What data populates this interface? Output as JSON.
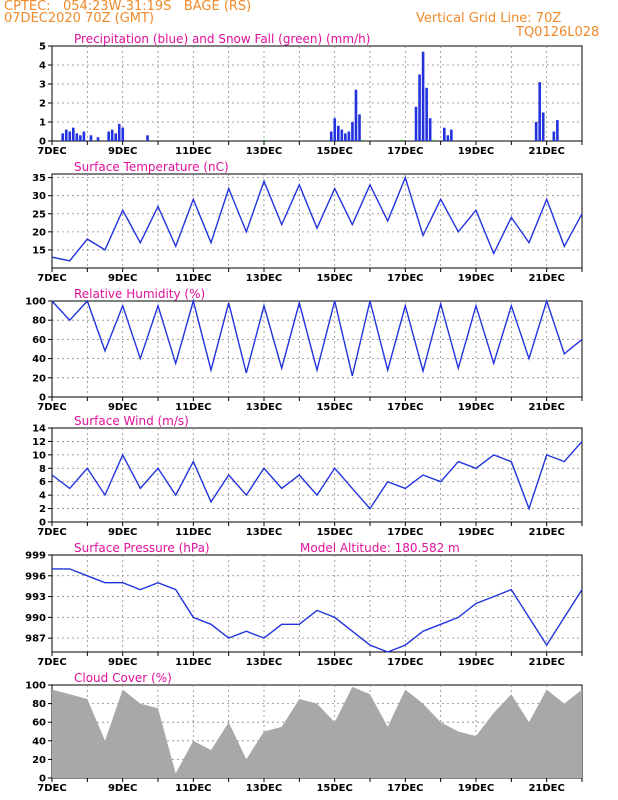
{
  "header": {
    "source_label": "CPTEC:",
    "coords": "054:23W-31:19S",
    "station": "BAGE (RS)",
    "run_date": "07DEC2020 70Z (GMT)",
    "grid_note": "Vertical Grid Line: 70Z",
    "model_code": "TQ0126L028"
  },
  "colors": {
    "accent": "#f08a2a",
    "title": "#e0119a",
    "line": "#2233dd",
    "snow": "#18a018",
    "cloud": "#a8a8a8"
  },
  "x_ticks": [
    "7DEC",
    "9DEC",
    "11DEC",
    "13DEC",
    "15DEC",
    "17DEC",
    "19DEC",
    "21DEC"
  ],
  "chart_data": [
    {
      "type": "bar",
      "title": "Precipitation (blue) and Snow Fall (green) (mm/h)",
      "ylim": [
        0,
        5
      ],
      "yticks": [
        "0",
        "1",
        "2",
        "3",
        "4",
        "5"
      ],
      "xlim_days": [
        7,
        22
      ],
      "series": [
        {
          "name": "Precipitation",
          "color": "#2233dd",
          "points": [
            [
              7.3,
              0.4
            ],
            [
              7.4,
              0.6
            ],
            [
              7.5,
              0.5
            ],
            [
              7.6,
              0.7
            ],
            [
              7.7,
              0.4
            ],
            [
              7.8,
              0.3
            ],
            [
              7.9,
              0.5
            ],
            [
              8.1,
              0.3
            ],
            [
              8.3,
              0.2
            ],
            [
              8.6,
              0.5
            ],
            [
              8.7,
              0.6
            ],
            [
              8.8,
              0.4
            ],
            [
              8.9,
              0.9
            ],
            [
              9.0,
              0.7
            ],
            [
              9.7,
              0.3
            ],
            [
              14.9,
              0.5
            ],
            [
              15.0,
              1.2
            ],
            [
              15.1,
              0.8
            ],
            [
              15.2,
              0.6
            ],
            [
              15.3,
              0.4
            ],
            [
              15.4,
              0.5
            ],
            [
              15.5,
              1.0
            ],
            [
              15.6,
              2.7
            ],
            [
              15.7,
              1.4
            ],
            [
              17.3,
              1.8
            ],
            [
              17.4,
              3.5
            ],
            [
              17.5,
              4.7
            ],
            [
              17.6,
              2.8
            ],
            [
              17.7,
              1.2
            ],
            [
              18.1,
              0.7
            ],
            [
              18.2,
              0.3
            ],
            [
              18.3,
              0.6
            ],
            [
              20.7,
              1.0
            ],
            [
              20.8,
              3.1
            ],
            [
              20.9,
              1.5
            ],
            [
              21.2,
              0.5
            ],
            [
              21.3,
              1.1
            ]
          ]
        },
        {
          "name": "Snow Fall",
          "color": "#18a018",
          "points": [
            [
              13.0,
              0.05
            ],
            [
              15.8,
              0.05
            ],
            [
              16.9,
              0.05
            ],
            [
              17.8,
              0.05
            ]
          ]
        }
      ]
    },
    {
      "type": "line",
      "title": "Surface Temperature (nC)",
      "ylim": [
        10,
        36
      ],
      "yticks": [
        "15",
        "20",
        "25",
        "30",
        "35"
      ],
      "xlim_days": [
        7,
        22
      ],
      "x": [
        7.0,
        7.5,
        8.0,
        8.5,
        9.0,
        9.5,
        10.0,
        10.5,
        11.0,
        11.5,
        12.0,
        12.5,
        13.0,
        13.5,
        14.0,
        14.5,
        15.0,
        15.5,
        16.0,
        16.5,
        17.0,
        17.5,
        18.0,
        18.5,
        19.0,
        19.5,
        20.0,
        20.5,
        21.0,
        21.5,
        22.0
      ],
      "values": [
        13,
        12,
        18,
        15,
        26,
        17,
        27,
        16,
        29,
        17,
        32,
        20,
        34,
        22,
        33,
        21,
        32,
        22,
        33,
        23,
        35,
        19,
        29,
        20,
        26,
        14,
        24,
        17,
        29,
        16,
        25
      ]
    },
    {
      "type": "line",
      "title": "Relative Humidity (%)",
      "ylim": [
        0,
        100
      ],
      "yticks": [
        "0",
        "20",
        "40",
        "60",
        "80",
        "100"
      ],
      "xlim_days": [
        7,
        22
      ],
      "x": [
        7.0,
        7.5,
        8.0,
        8.5,
        9.0,
        9.5,
        10.0,
        10.5,
        11.0,
        11.5,
        12.0,
        12.5,
        13.0,
        13.5,
        14.0,
        14.5,
        15.0,
        15.5,
        16.0,
        16.5,
        17.0,
        17.5,
        18.0,
        18.5,
        19.0,
        19.5,
        20.0,
        20.5,
        21.0,
        21.5,
        22.0
      ],
      "values": [
        100,
        80,
        100,
        48,
        95,
        40,
        95,
        35,
        100,
        28,
        98,
        25,
        95,
        30,
        98,
        28,
        100,
        22,
        100,
        28,
        95,
        27,
        97,
        30,
        95,
        35,
        95,
        40,
        100,
        45,
        60
      ]
    },
    {
      "type": "line",
      "title": "Surface Wind (m/s)",
      "ylim": [
        0,
        14
      ],
      "yticks": [
        "0",
        "2",
        "4",
        "6",
        "8",
        "10",
        "12",
        "14"
      ],
      "xlim_days": [
        7,
        22
      ],
      "x": [
        7.0,
        7.5,
        8.0,
        8.5,
        9.0,
        9.5,
        10.0,
        10.5,
        11.0,
        11.5,
        12.0,
        12.5,
        13.0,
        13.5,
        14.0,
        14.5,
        15.0,
        15.5,
        16.0,
        16.5,
        17.0,
        17.5,
        18.0,
        18.5,
        19.0,
        19.5,
        20.0,
        20.5,
        21.0,
        21.5,
        22.0
      ],
      "values": [
        7,
        5,
        8,
        4,
        10,
        5,
        8,
        4,
        9,
        3,
        7,
        4,
        8,
        5,
        7,
        4,
        8,
        5,
        2,
        6,
        5,
        7,
        6,
        9,
        8,
        10,
        9,
        2,
        10,
        9,
        12
      ]
    },
    {
      "type": "line",
      "title": "Surface Pressure (hPa)",
      "subtitle": "Model Altitude: 180.582 m",
      "ylim": [
        985,
        999
      ],
      "yticks": [
        "987",
        "990",
        "993",
        "996",
        "999"
      ],
      "xlim_days": [
        7,
        22
      ],
      "x": [
        7.0,
        7.5,
        8.0,
        8.5,
        9.0,
        9.5,
        10.0,
        10.5,
        11.0,
        11.5,
        12.0,
        12.5,
        13.0,
        13.5,
        14.0,
        14.5,
        15.0,
        15.5,
        16.0,
        16.5,
        17.0,
        17.5,
        18.0,
        18.5,
        19.0,
        19.5,
        20.0,
        20.5,
        21.0,
        21.5,
        22.0
      ],
      "values": [
        997,
        997,
        996,
        995,
        995,
        994,
        995,
        994,
        990,
        989,
        987,
        988,
        987,
        989,
        989,
        991,
        990,
        988,
        986,
        985,
        986,
        988,
        989,
        990,
        992,
        993,
        994,
        990,
        986,
        990,
        994
      ]
    },
    {
      "type": "area",
      "title": "Cloud Cover (%)",
      "ylim": [
        0,
        100
      ],
      "yticks": [
        "0",
        "20",
        "40",
        "60",
        "80",
        "100"
      ],
      "xlim_days": [
        7,
        22
      ],
      "x": [
        7.0,
        7.5,
        8.0,
        8.5,
        9.0,
        9.5,
        10.0,
        10.5,
        11.0,
        11.5,
        12.0,
        12.5,
        13.0,
        13.5,
        14.0,
        14.5,
        15.0,
        15.5,
        16.0,
        16.5,
        17.0,
        17.5,
        18.0,
        18.5,
        19.0,
        19.5,
        20.0,
        20.5,
        21.0,
        21.5,
        22.0
      ],
      "values": [
        95,
        90,
        85,
        40,
        95,
        80,
        75,
        5,
        40,
        30,
        60,
        20,
        50,
        55,
        85,
        80,
        60,
        98,
        90,
        55,
        95,
        80,
        60,
        50,
        45,
        70,
        90,
        60,
        95,
        80,
        95
      ]
    }
  ]
}
